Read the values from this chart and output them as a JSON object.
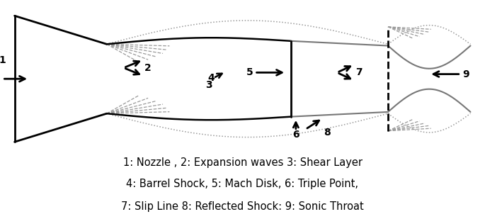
{
  "fig_width": 6.85,
  "fig_height": 3.09,
  "bg_color": "#ffffff",
  "line_color": "#000000",
  "gray_color": "#777777",
  "dotted_color": "#999999",
  "caption_lines": [
    "1: Nozzle , 2: Expansion waves 3: Shear Layer",
    "4: Barrel Shock, 5: Mach Disk, 6: Triple Point,",
    "7: Slip Line 8: Reflected Shock: 9: Sonic Throat"
  ],
  "caption_fontsize": 10.5
}
